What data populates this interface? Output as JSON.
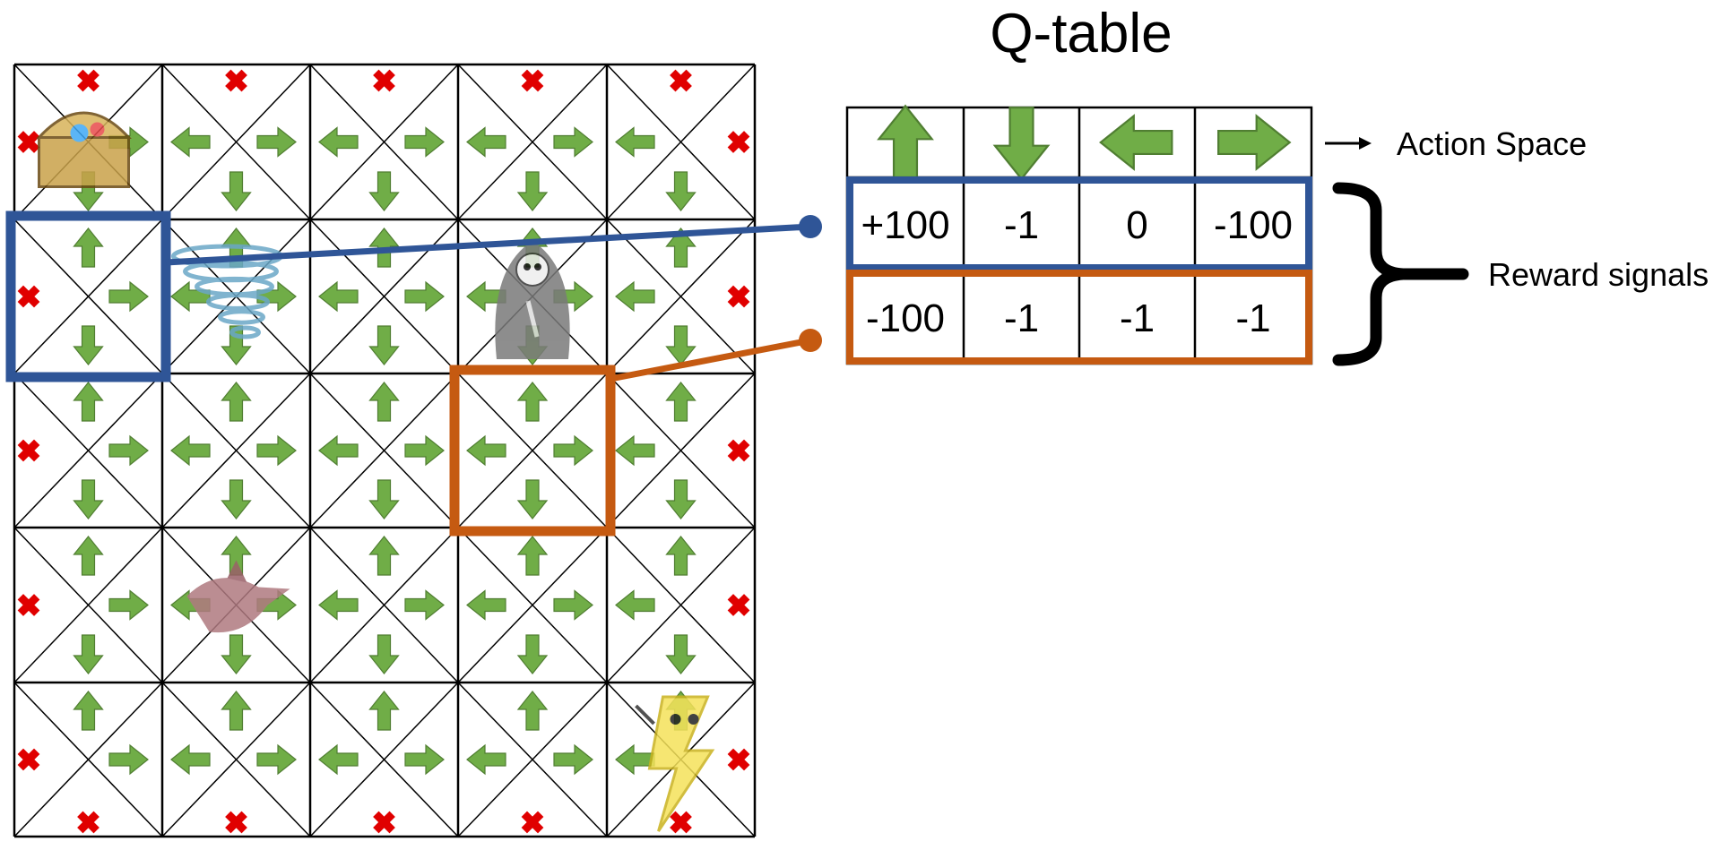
{
  "title": "Q-table",
  "action_space_label": "Action Space",
  "reward_signals_label": "Reward signals",
  "actions": [
    "up",
    "down",
    "left",
    "right"
  ],
  "rows": [
    {
      "values": [
        "+100",
        "-1",
        "0",
        "-100"
      ],
      "highlight": "#2f5597",
      "grid_cell": [
        1,
        0
      ]
    },
    {
      "values": [
        "-100",
        "-1",
        "-1",
        "-1"
      ],
      "highlight": "#c55a11",
      "grid_cell": [
        2,
        3
      ]
    }
  ],
  "grid": {
    "rows": 5,
    "cols": 5,
    "objects": [
      {
        "name": "treasure-chest",
        "cell": [
          0,
          0
        ]
      },
      {
        "name": "tornado",
        "cell": [
          1,
          1
        ]
      },
      {
        "name": "grim-reaper",
        "cell": [
          1,
          3
        ]
      },
      {
        "name": "dragon",
        "cell": [
          3,
          1
        ]
      },
      {
        "name": "lightning-character",
        "cell": [
          4,
          4
        ]
      }
    ]
  },
  "colors": {
    "arrow": "#70ad47",
    "arrow_stroke": "#507e32",
    "forbidden": "#e00000",
    "blue": "#2f5597",
    "orange": "#c55a11"
  }
}
